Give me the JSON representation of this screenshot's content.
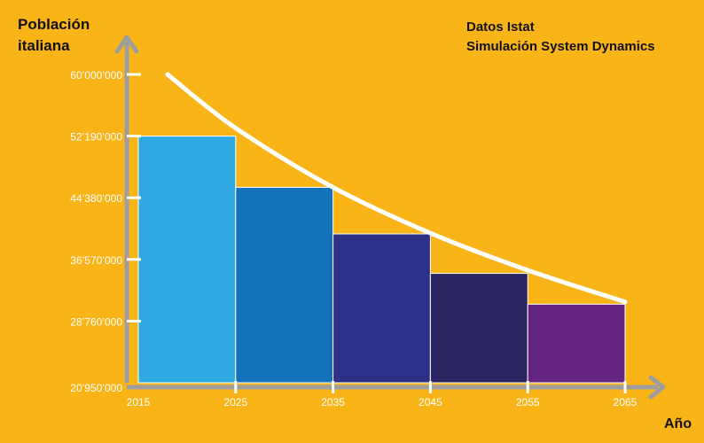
{
  "chart_data": {
    "type": "bar",
    "ylabel_lines": [
      "Población",
      "italiana"
    ],
    "source_lines": [
      "Datos Istat",
      "Simulación System Dynamics"
    ],
    "xlabel": "Año",
    "x_ticks": [
      "2015",
      "2025",
      "2035",
      "2045",
      "2055",
      "2065"
    ],
    "y_ticks": [
      "20’950’000",
      "28’760’000",
      "36’570’000",
      "44’380’000",
      "52’190’000",
      "60’000’000"
    ],
    "y_tick_values": [
      20950000,
      28760000,
      36570000,
      44380000,
      52190000,
      60000000
    ],
    "ylim": [
      20950000,
      60000000
    ],
    "xlim": [
      2015,
      2065
    ],
    "bars": [
      {
        "from": 2015,
        "to": 2025,
        "value": 52190000,
        "color": "#2EA9E2"
      },
      {
        "from": 2025,
        "to": 2035,
        "value": 45700000,
        "color": "#1372BA"
      },
      {
        "from": 2035,
        "to": 2045,
        "value": 39800000,
        "color": "#2E3088"
      },
      {
        "from": 2045,
        "to": 2055,
        "value": 34800000,
        "color": "#2A2461"
      },
      {
        "from": 2055,
        "to": 2065,
        "value": 30900000,
        "color": "#662483"
      }
    ],
    "curve": {
      "x": [
        2018,
        2025,
        2035,
        2045,
        2055,
        2065
      ],
      "y": [
        60000000,
        53200000,
        45700000,
        39900000,
        35200000,
        31200000
      ],
      "color": "#FFFFFF"
    },
    "axis_color": "#9E9E9E",
    "background": "#F9B418"
  }
}
